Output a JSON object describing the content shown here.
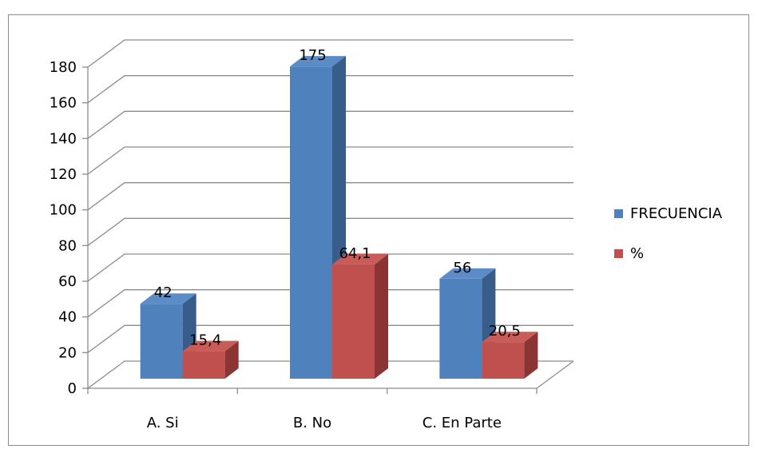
{
  "chart_data": {
    "type": "bar",
    "categories": [
      "A. Si",
      "B. No",
      "C. En Parte"
    ],
    "series": [
      {
        "name": "FRECUENCIA",
        "values": [
          42,
          175,
          56
        ],
        "labels": [
          "42",
          "175",
          "56"
        ],
        "color": "#4f81bd",
        "side_color": "#385d8a",
        "top_color": "#5c8cc8"
      },
      {
        "name": "%",
        "values": [
          15.4,
          64.1,
          20.5
        ],
        "labels": [
          "15,4",
          "64,1",
          "20,5"
        ],
        "color": "#c0504d",
        "side_color": "#8a3533",
        "top_color": "#c95c59"
      }
    ],
    "y_ticks": [
      "0",
      "20",
      "40",
      "60",
      "80",
      "100",
      "120",
      "140",
      "160",
      "180"
    ],
    "ylim": [
      0,
      180
    ],
    "grid": true,
    "legend_position": "right"
  }
}
